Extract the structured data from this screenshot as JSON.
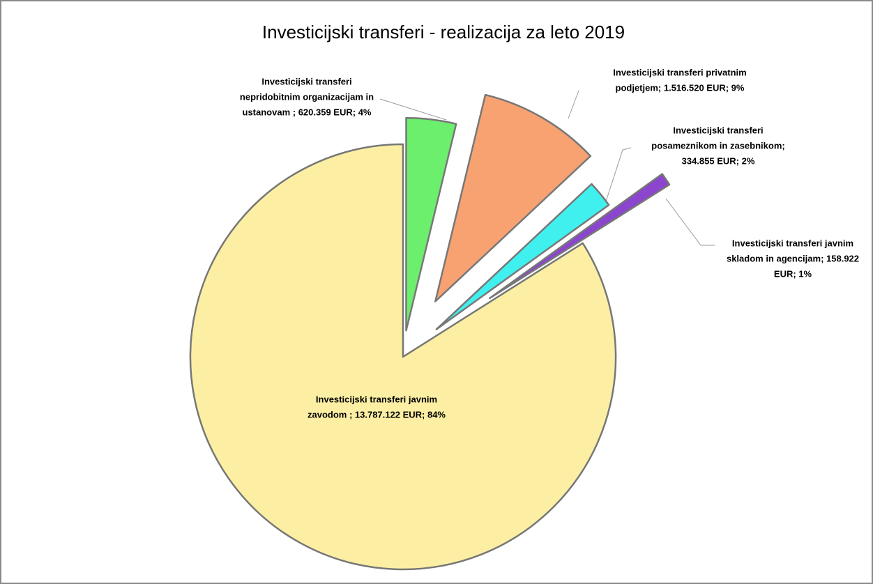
{
  "chart_data": {
    "type": "pie",
    "title": "Investicijski transferi - realizacija za leto 2019",
    "values": [
      620359,
      1516520,
      334855,
      158922,
      13787122
    ],
    "value_labels": [
      [
        "Investicijski transferi",
        "nepridobitnim  organizacijam in",
        "ustanovam ; 620.359 EUR; 4%"
      ],
      [
        "Investicijski transferi privatnim",
        "podjetjem; 1.516.520 EUR; 9%"
      ],
      [
        "Investicijski transferi",
        "posameznikom in zasebnikom;",
        "334.855 EUR; 2%"
      ],
      [
        "Investicijski transferi javnim",
        "skladom in agencijam; 158.922",
        "EUR; 1%"
      ],
      [
        "Investicijski transferi javnim",
        "zavodom ; 13.787.122 EUR; 84%"
      ]
    ],
    "colors": [
      "#6cef6c",
      "#f8a272",
      "#3ff0ee",
      "#8b45cf",
      "#fcefa3"
    ]
  }
}
